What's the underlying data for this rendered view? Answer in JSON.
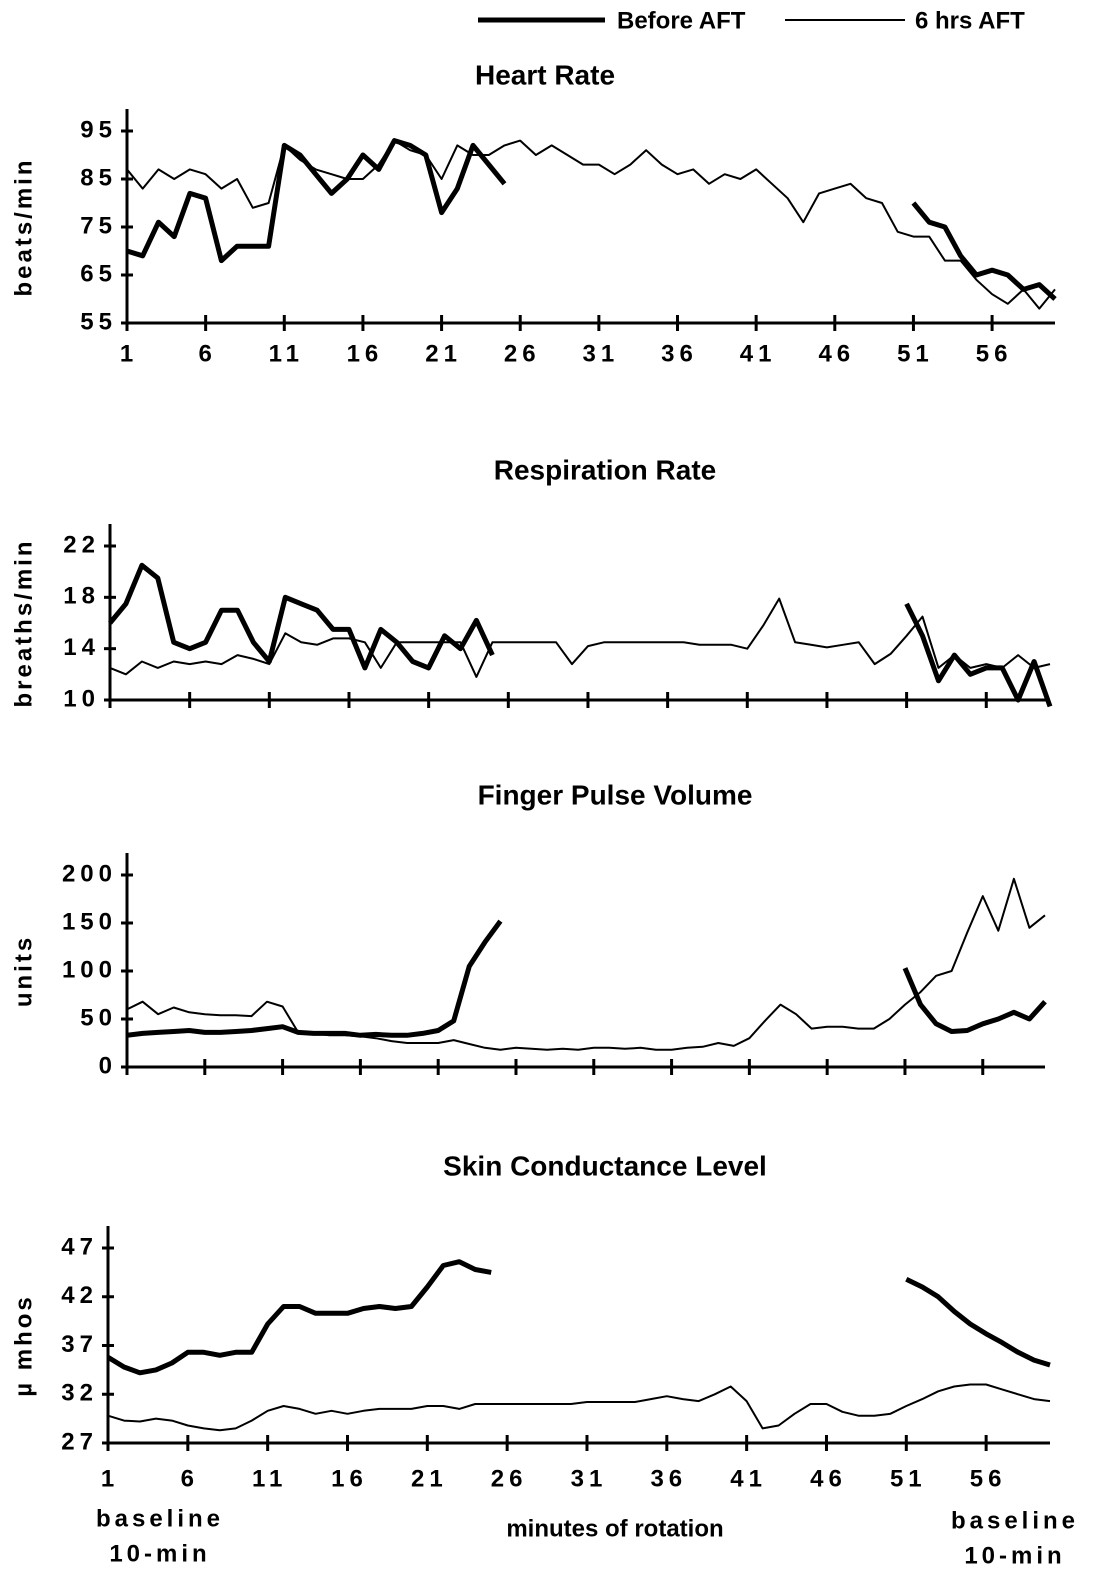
{
  "chart_data": [
    {
      "type": "line",
      "title": "Heart   Rate",
      "ylabel": "beats/min",
      "x": [
        1,
        2,
        3,
        4,
        5,
        6,
        7,
        8,
        9,
        10,
        11,
        12,
        13,
        14,
        15,
        16,
        17,
        18,
        19,
        20,
        21,
        22,
        23,
        24,
        25,
        26,
        27,
        28,
        29,
        30,
        31,
        32,
        33,
        34,
        35,
        36,
        37,
        38,
        39,
        40,
        41,
        42,
        43,
        44,
        45,
        46,
        47,
        48,
        49,
        50,
        51,
        52,
        53,
        54,
        55,
        56,
        57,
        58,
        59,
        60
      ],
      "xlim": [
        1,
        60
      ],
      "xticks": [
        1,
        6,
        11,
        16,
        21,
        26,
        31,
        36,
        41,
        46,
        51,
        56
      ],
      "show_xtick_labels": true,
      "ylim": [
        55,
        95
      ],
      "yticks": [
        55,
        65,
        75,
        85,
        95
      ],
      "series": [
        {
          "name": "Before AFT",
          "color": "#000000",
          "line_width": 5,
          "values": [
            70,
            69,
            76,
            73,
            82,
            81,
            68,
            71,
            71,
            71,
            92,
            90,
            86,
            82,
            85,
            90,
            87,
            93,
            92,
            90,
            78,
            83,
            92,
            88,
            84,
            null,
            null,
            null,
            null,
            null,
            null,
            null,
            null,
            null,
            null,
            null,
            null,
            null,
            null,
            null,
            null,
            null,
            null,
            null,
            null,
            null,
            null,
            null,
            null,
            null,
            80,
            76,
            75,
            69,
            65,
            66,
            65,
            62,
            63,
            60
          ]
        },
        {
          "name": "6 hrs  AFT",
          "color": "#000000",
          "line_width": 2,
          "values": [
            87,
            83,
            87,
            85,
            87,
            86,
            83,
            85,
            79,
            80,
            92,
            89,
            87,
            86,
            85,
            85,
            88,
            93,
            91,
            90,
            85,
            92,
            90,
            90,
            92,
            93,
            90,
            92,
            90,
            88,
            88,
            86,
            88,
            91,
            88,
            86,
            87,
            84,
            86,
            85,
            87,
            84,
            81,
            76,
            82,
            83,
            84,
            81,
            80,
            74,
            73,
            73,
            68,
            68,
            64,
            61,
            59,
            62,
            58,
            62
          ]
        }
      ]
    },
    {
      "type": "line",
      "title": "Respiration Rate",
      "ylabel": "breaths/min",
      "x": [
        1,
        2,
        3,
        4,
        5,
        6,
        7,
        8,
        9,
        10,
        11,
        12,
        13,
        14,
        15,
        16,
        17,
        18,
        19,
        20,
        21,
        22,
        23,
        24,
        25,
        26,
        27,
        28,
        29,
        30,
        31,
        32,
        33,
        34,
        35,
        36,
        37,
        38,
        39,
        40,
        41,
        42,
        43,
        44,
        45,
        46,
        47,
        48,
        49,
        50,
        51,
        52,
        53,
        54,
        55,
        56,
        57,
        58,
        59,
        60
      ],
      "xlim": [
        1,
        60
      ],
      "xticks": [
        1,
        6,
        11,
        16,
        21,
        26,
        31,
        36,
        41,
        46,
        51,
        56
      ],
      "show_xtick_labels": false,
      "ylim": [
        10,
        22
      ],
      "yticks": [
        10,
        14,
        18,
        22
      ],
      "series": [
        {
          "color": "#000000",
          "line_width": 5,
          "values": [
            16,
            17.5,
            20.5,
            19.5,
            14.5,
            14,
            14.5,
            17,
            17,
            14.5,
            13,
            18,
            17.5,
            17,
            15.5,
            15.5,
            12.5,
            15.5,
            14.5,
            13,
            12.5,
            15,
            14,
            16.2,
            13.5,
            null,
            null,
            null,
            null,
            null,
            null,
            null,
            null,
            null,
            null,
            null,
            null,
            null,
            null,
            null,
            null,
            null,
            null,
            null,
            null,
            null,
            null,
            null,
            null,
            null,
            17.5,
            15,
            11.5,
            13.5,
            12,
            12.5,
            12.5,
            10,
            13,
            9.5
          ]
        },
        {
          "color": "#000000",
          "line_width": 2,
          "values": [
            12.5,
            12,
            13,
            12.5,
            13,
            12.8,
            13,
            12.8,
            13.5,
            13.2,
            12.8,
            15.2,
            14.5,
            14.3,
            14.8,
            14.8,
            14.5,
            12.5,
            14.5,
            14.5,
            14.5,
            14.5,
            14.5,
            11.8,
            14.5,
            14.5,
            14.5,
            14.5,
            14.5,
            12.8,
            14.2,
            14.5,
            14.5,
            14.5,
            14.5,
            14.5,
            14.5,
            14.3,
            14.3,
            14.3,
            14,
            15.8,
            17.9,
            14.5,
            14.3,
            14.1,
            14.3,
            14.5,
            12.8,
            13.6,
            15,
            16.5,
            12.5,
            13.5,
            12.5,
            12.8,
            12.5,
            13.5,
            12.5,
            12.8
          ]
        }
      ]
    },
    {
      "type": "line",
      "title": "Finger Pulse Volume",
      "ylabel": "units",
      "x": [
        1,
        2,
        3,
        4,
        5,
        6,
        7,
        8,
        9,
        10,
        11,
        12,
        13,
        14,
        15,
        16,
        17,
        18,
        19,
        20,
        21,
        22,
        23,
        24,
        25,
        26,
        27,
        28,
        29,
        30,
        31,
        32,
        33,
        34,
        35,
        36,
        37,
        38,
        39,
        40,
        41,
        42,
        43,
        44,
        45,
        46,
        47,
        48,
        49,
        50,
        51,
        52,
        53,
        54,
        55,
        56,
        57,
        58,
        59,
        60
      ],
      "xlim": [
        1,
        60
      ],
      "xticks": [
        1,
        6,
        11,
        16,
        21,
        26,
        31,
        36,
        41,
        46,
        51,
        56
      ],
      "show_xtick_labels": false,
      "ylim": [
        0,
        200
      ],
      "yticks": [
        0,
        50,
        100,
        150,
        200
      ],
      "series": [
        {
          "color": "#000000",
          "line_width": 5,
          "values": [
            33,
            35,
            36,
            37,
            38,
            36,
            36,
            37,
            38,
            40,
            42,
            36,
            35,
            35,
            35,
            33,
            34,
            33,
            33,
            35,
            38,
            48,
            105,
            130,
            152,
            null,
            null,
            null,
            null,
            null,
            null,
            null,
            null,
            null,
            null,
            null,
            null,
            null,
            null,
            null,
            null,
            null,
            null,
            null,
            null,
            null,
            null,
            null,
            null,
            null,
            103,
            65,
            45,
            37,
            38,
            45,
            50,
            57,
            50,
            68
          ]
        },
        {
          "color": "#000000",
          "line_width": 2,
          "values": [
            60,
            68,
            55,
            62,
            57,
            55,
            54,
            54,
            53,
            68,
            63,
            36,
            35,
            33,
            33,
            32,
            30,
            27,
            25,
            25,
            25,
            28,
            24,
            20,
            18,
            20,
            19,
            18,
            19,
            18,
            20,
            20,
            19,
            20,
            18,
            18,
            20,
            21,
            25,
            22,
            30,
            48,
            65,
            55,
            40,
            42,
            42,
            40,
            40,
            50,
            65,
            78,
            95,
            100,
            140,
            178,
            142,
            196,
            145,
            158
          ]
        }
      ]
    },
    {
      "type": "line",
      "title": "Skin Conductance Level",
      "ylabel": "µ mhos",
      "xlabel": "minutes of rotation",
      "annotations": [
        {
          "lines": [
            "baseline",
            "10-min"
          ]
        },
        {
          "lines": [
            "baseline",
            "10-min"
          ]
        }
      ],
      "x": [
        1,
        2,
        3,
        4,
        5,
        6,
        7,
        8,
        9,
        10,
        11,
        12,
        13,
        14,
        15,
        16,
        17,
        18,
        19,
        20,
        21,
        22,
        23,
        24,
        25,
        26,
        27,
        28,
        29,
        30,
        31,
        32,
        33,
        34,
        35,
        36,
        37,
        38,
        39,
        40,
        41,
        42,
        43,
        44,
        45,
        46,
        47,
        48,
        49,
        50,
        51,
        52,
        53,
        54,
        55,
        56,
        57,
        58,
        59,
        60
      ],
      "xlim": [
        1,
        60
      ],
      "xticks": [
        1,
        6,
        11,
        16,
        21,
        26,
        31,
        36,
        41,
        46,
        51,
        56
      ],
      "show_xtick_labels": true,
      "ylim": [
        27,
        47
      ],
      "yticks": [
        27,
        32,
        37,
        42,
        47
      ],
      "series": [
        {
          "color": "#000000",
          "line_width": 5,
          "values": [
            35.8,
            34.8,
            34.2,
            34.5,
            35.2,
            36.3,
            36.3,
            36,
            36.3,
            36.3,
            39.2,
            41,
            41,
            40.3,
            40.3,
            40.3,
            40.8,
            41,
            40.8,
            41,
            43,
            45.2,
            45.6,
            44.8,
            44.5,
            null,
            null,
            null,
            null,
            null,
            null,
            null,
            null,
            null,
            null,
            null,
            null,
            null,
            null,
            null,
            null,
            null,
            null,
            null,
            null,
            null,
            null,
            null,
            null,
            null,
            43.8,
            43,
            42,
            40.5,
            39.2,
            38.2,
            37.3,
            36.3,
            35.5,
            35
          ]
        },
        {
          "color": "#000000",
          "line_width": 2,
          "values": [
            29.8,
            29.3,
            29.2,
            29.5,
            29.3,
            28.8,
            28.5,
            28.3,
            28.5,
            29.3,
            30.3,
            30.8,
            30.5,
            30,
            30.3,
            30,
            30.3,
            30.5,
            30.5,
            30.5,
            30.8,
            30.8,
            30.5,
            31,
            31,
            31,
            31,
            31,
            31,
            31,
            31.2,
            31.2,
            31.2,
            31.2,
            31.5,
            31.8,
            31.5,
            31.3,
            32,
            32.8,
            31.3,
            28.5,
            28.8,
            30,
            31,
            31,
            30.2,
            29.8,
            29.8,
            30,
            30.8,
            31.5,
            32.3,
            32.8,
            33,
            33,
            32.5,
            32,
            31.5,
            31.3
          ]
        }
      ]
    }
  ]
}
